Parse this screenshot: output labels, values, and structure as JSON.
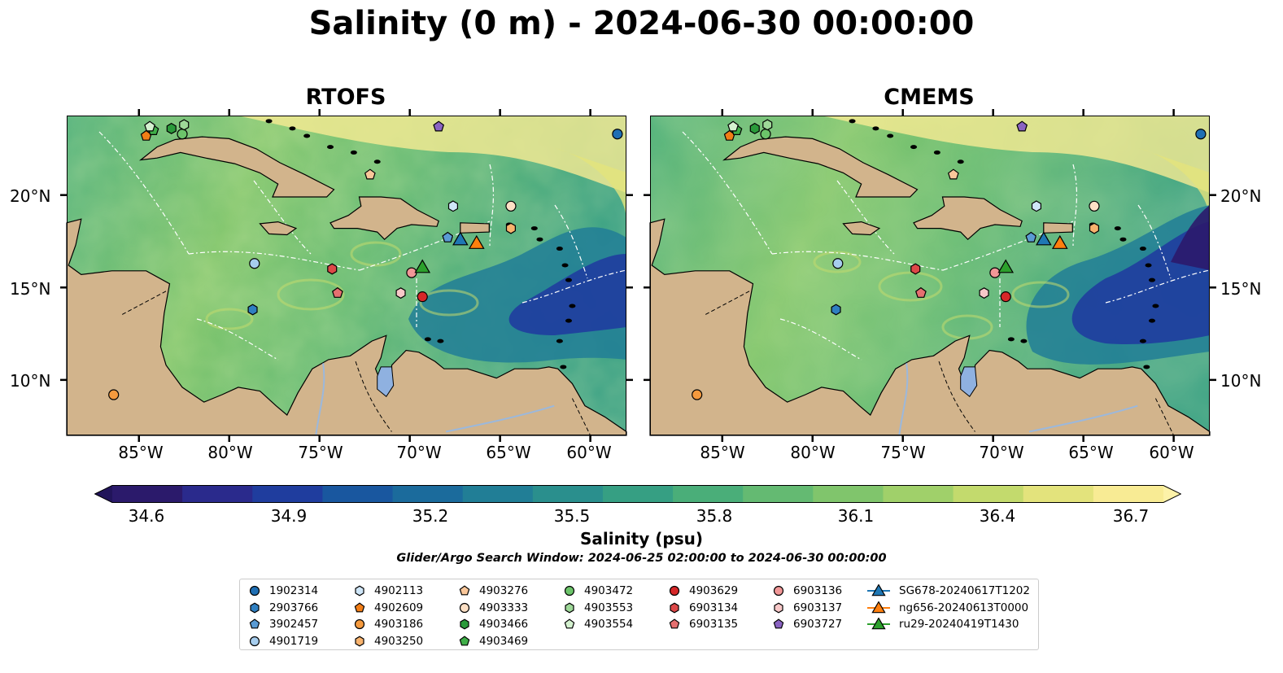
{
  "title": "Salinity (0 m) - 2024-06-30 00:00:00",
  "panels": [
    {
      "title": "RTOFS",
      "variant": 0
    },
    {
      "title": "CMEMS",
      "variant": 1
    }
  ],
  "map": {
    "lat_labels_left": [
      "20°N",
      "15°N",
      "10°N"
    ],
    "lat_labels_right": [
      "20°N",
      "15°N",
      "10°N"
    ],
    "lon_labels": [
      "85°W",
      "80°W",
      "75°W",
      "70°W",
      "65°W",
      "60°W"
    ],
    "land_color": "#d2b48c",
    "lake_color": "#8fb1e0"
  },
  "colorbar": {
    "ticks": [
      "34.6",
      "34.9",
      "35.2",
      "35.5",
      "35.8",
      "36.1",
      "36.4",
      "36.7"
    ],
    "label": "Salinity (psu)",
    "colors": [
      "#2b1a6b",
      "#2a2a8c",
      "#1f3d9e",
      "#19579f",
      "#1b6b9c",
      "#217e96",
      "#2a8f8d",
      "#369f83",
      "#4aae79",
      "#64ba72",
      "#80c56c",
      "#a0d06a",
      "#c3da6d",
      "#e3e37c",
      "#f8eb94"
    ]
  },
  "search_window": "Glider/Argo Search Window: 2024-06-25 02:00:00 to 2024-06-30 00:00:00",
  "legend": {
    "columns": [
      [
        {
          "label": "1902314",
          "shape": "circle",
          "color": "#1f6fb4"
        },
        {
          "label": "2903766",
          "shape": "hexagon",
          "color": "#2f7fc1"
        },
        {
          "label": "3902457",
          "shape": "pentagon",
          "color": "#5a9bd4"
        },
        {
          "label": "4901719",
          "shape": "circle",
          "color": "#a6cdee"
        }
      ],
      [
        {
          "label": "4902113",
          "shape": "hexagon",
          "color": "#cfe6f8"
        },
        {
          "label": "4902609",
          "shape": "pentagon",
          "color": "#f27e17"
        },
        {
          "label": "4903186",
          "shape": "circle",
          "color": "#f59a3e"
        },
        {
          "label": "4903250",
          "shape": "hexagon",
          "color": "#f8b36e"
        }
      ],
      [
        {
          "label": "4903276",
          "shape": "pentagon",
          "color": "#fac79a"
        },
        {
          "label": "4903333",
          "shape": "circle",
          "color": "#fde0c5"
        },
        {
          "label": "4903466",
          "shape": "hexagon",
          "color": "#2a9a3a"
        },
        {
          "label": "4903469",
          "shape": "pentagon",
          "color": "#3fae48"
        }
      ],
      [
        {
          "label": "4903472",
          "shape": "circle",
          "color": "#6cc46a"
        },
        {
          "label": "4903553",
          "shape": "hexagon",
          "color": "#9ed898"
        },
        {
          "label": "4903554",
          "shape": "pentagon",
          "color": "#d4f1cf"
        }
      ],
      [
        {
          "label": "4903629",
          "shape": "circle",
          "color": "#d62728"
        },
        {
          "label": "6903134",
          "shape": "hexagon",
          "color": "#dd4848"
        },
        {
          "label": "6903135",
          "shape": "pentagon",
          "color": "#e57070"
        }
      ],
      [
        {
          "label": "6903136",
          "shape": "circle",
          "color": "#f19797"
        },
        {
          "label": "6903137",
          "shape": "hexagon",
          "color": "#f8c8c8"
        },
        {
          "label": "6903727",
          "shape": "pentagon",
          "color": "#8a63c2"
        }
      ],
      [
        {
          "label": "SG678-20240617T1202",
          "shape": "triangle",
          "color": "#1f77b4"
        },
        {
          "label": "ng656-20240613T0000",
          "shape": "triangle",
          "color": "#ff7f0e"
        },
        {
          "label": "ru29-20240419T1430",
          "shape": "triangle",
          "color": "#2ca02c"
        }
      ]
    ]
  },
  "markers": [
    {
      "lon": -58.5,
      "lat": 23.3,
      "shape": "circle",
      "color": "#1f6fb4"
    },
    {
      "lon": -78.7,
      "lat": 13.8,
      "shape": "hexagon",
      "color": "#2f7fc1"
    },
    {
      "lon": -67.9,
      "lat": 17.7,
      "shape": "pentagon",
      "color": "#5a9bd4"
    },
    {
      "lon": -78.6,
      "lat": 16.3,
      "shape": "circle",
      "color": "#a6cdee"
    },
    {
      "lon": -67.6,
      "lat": 19.4,
      "shape": "hexagon",
      "color": "#cfe6f8"
    },
    {
      "lon": -84.6,
      "lat": 23.2,
      "shape": "pentagon",
      "color": "#f27e17"
    },
    {
      "lon": -86.4,
      "lat": 9.2,
      "shape": "circle",
      "color": "#f59a3e"
    },
    {
      "lon": -64.4,
      "lat": 18.2,
      "shape": "hexagon",
      "color": "#f8b36e"
    },
    {
      "lon": -72.2,
      "lat": 21.1,
      "shape": "pentagon",
      "color": "#fac79a"
    },
    {
      "lon": -64.4,
      "lat": 19.4,
      "shape": "circle",
      "color": "#fde0c5"
    },
    {
      "lon": -83.2,
      "lat": 23.6,
      "shape": "hexagon",
      "color": "#2a9a3a"
    },
    {
      "lon": -84.2,
      "lat": 23.5,
      "shape": "pentagon",
      "color": "#3fae48"
    },
    {
      "lon": -82.6,
      "lat": 23.3,
      "shape": "circle",
      "color": "#6cc46a"
    },
    {
      "lon": -82.5,
      "lat": 23.8,
      "shape": "hexagon",
      "color": "#9ed898"
    },
    {
      "lon": -84.4,
      "lat": 23.7,
      "shape": "pentagon",
      "color": "#d4f1cf"
    },
    {
      "lon": -69.3,
      "lat": 14.5,
      "shape": "circle",
      "color": "#d62728"
    },
    {
      "lon": -74.3,
      "lat": 16.0,
      "shape": "hexagon",
      "color": "#dd4848"
    },
    {
      "lon": -74.0,
      "lat": 14.7,
      "shape": "pentagon",
      "color": "#e57070"
    },
    {
      "lon": -69.9,
      "lat": 15.8,
      "shape": "circle",
      "color": "#f19797"
    },
    {
      "lon": -70.5,
      "lat": 14.7,
      "shape": "hexagon",
      "color": "#f8c8c8"
    },
    {
      "lon": -68.4,
      "lat": 23.7,
      "shape": "pentagon",
      "color": "#8a63c2"
    },
    {
      "lon": -67.2,
      "lat": 17.6,
      "shape": "triangle",
      "color": "#1f77b4"
    },
    {
      "lon": -66.3,
      "lat": 17.4,
      "shape": "triangle",
      "color": "#ff7f0e"
    },
    {
      "lon": -69.3,
      "lat": 16.1,
      "shape": "triangle",
      "color": "#2ca02c"
    }
  ]
}
